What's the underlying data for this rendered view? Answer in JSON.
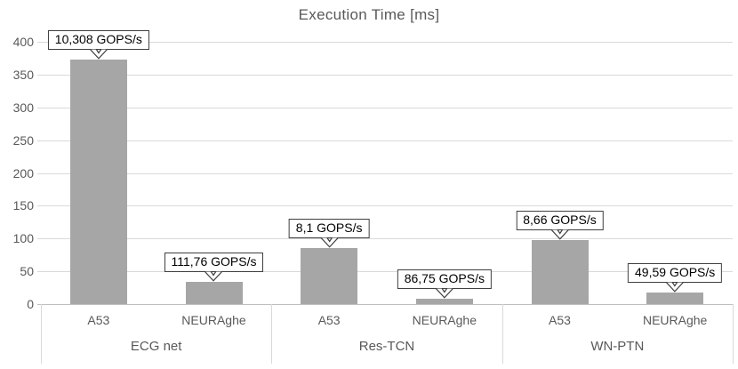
{
  "chart_data": {
    "type": "bar",
    "title": "Execution Time [ms]",
    "xlabel": "",
    "ylabel": "",
    "ylim": [
      0,
      400
    ],
    "yticks": [
      0,
      50,
      100,
      150,
      200,
      250,
      300,
      350,
      400
    ],
    "grid": true,
    "legend_position": "none",
    "bar_color": "#a6a6a6",
    "gridline_color": "#d9d9d9",
    "axis_text_color": "#595959",
    "annotation_border_color": "#3f3f3f",
    "groups": [
      {
        "label": "ECG net",
        "bars": [
          {
            "category": "A53",
            "value_ms": 373,
            "annotation": "10,308 GOPS/s"
          },
          {
            "category": "NEURAghe",
            "value_ms": 34,
            "annotation": "111,76 GOPS/s"
          }
        ]
      },
      {
        "label": "Res-TCN",
        "bars": [
          {
            "category": "A53",
            "value_ms": 85,
            "annotation": "8,1 GOPS/s"
          },
          {
            "category": "NEURAghe",
            "value_ms": 8,
            "annotation": "86,75 GOPS/s"
          }
        ]
      },
      {
        "label": "WN-PTN",
        "bars": [
          {
            "category": "A53",
            "value_ms": 97,
            "annotation": "8,66 GOPS/s"
          },
          {
            "category": "NEURAghe",
            "value_ms": 17,
            "annotation": "49,59 GOPS/s"
          }
        ]
      }
    ]
  }
}
